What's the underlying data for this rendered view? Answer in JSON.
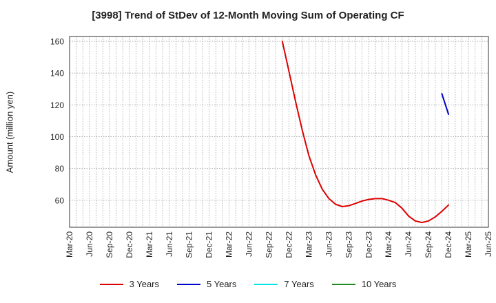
{
  "chart_data": {
    "type": "line",
    "title": "[3998]  Trend of StDev of 12-Month Moving Sum of Operating CF",
    "xlabel": "",
    "ylabel": "Amount (million yen)",
    "ylim": [
      43,
      163
    ],
    "yticks": [
      60,
      80,
      100,
      120,
      140,
      160
    ],
    "x_categories": [
      "Mar-20",
      "Jun-20",
      "Sep-20",
      "Dec-20",
      "Mar-21",
      "Jun-21",
      "Sep-21",
      "Dec-21",
      "Mar-22",
      "Jun-22",
      "Sep-22",
      "Dec-22",
      "Mar-23",
      "Jun-23",
      "Sep-23",
      "Dec-23",
      "Mar-24",
      "Jun-24",
      "Sep-24",
      "Dec-24",
      "Mar-25",
      "Jun-25"
    ],
    "grid": true,
    "legend_position": "bottom",
    "series": [
      {
        "name": "3 Years",
        "color": "#dd0000",
        "x": [
          "Nov-22",
          "Dec-22",
          "Jan-23",
          "Feb-23",
          "Mar-23",
          "Apr-23",
          "May-23",
          "Jun-23",
          "Jul-23",
          "Aug-23",
          "Sep-23",
          "Oct-23",
          "Nov-23",
          "Dec-23",
          "Jan-24",
          "Feb-24",
          "Mar-24",
          "Apr-24",
          "May-24",
          "Jun-24",
          "Jul-24",
          "Aug-24",
          "Sep-24",
          "Oct-24",
          "Nov-24",
          "Dec-24"
        ],
        "values": [
          160,
          141,
          122,
          104,
          88,
          76,
          67,
          61,
          57.5,
          56,
          56.5,
          58,
          59.5,
          60.5,
          61,
          61,
          60,
          58.5,
          55,
          50,
          47,
          46,
          47,
          49.5,
          53,
          57
        ]
      },
      {
        "name": "5 Years",
        "color": "#0000cc",
        "x": [
          "Nov-24",
          "Dec-24"
        ],
        "values": [
          127,
          114
        ]
      },
      {
        "name": "7 Years",
        "color": "#00e5e5",
        "x": [],
        "values": []
      },
      {
        "name": "10 Years",
        "color": "#228b22",
        "x": [],
        "values": []
      }
    ]
  }
}
